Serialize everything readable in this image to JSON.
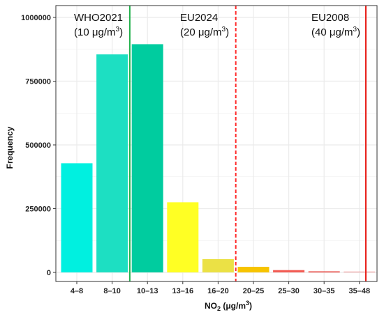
{
  "chart_data": {
    "type": "bar",
    "title": "",
    "xlabel": "NO",
    "xlabel_sub": "2",
    "xlabel_unit": " (μg/m",
    "xlabel_sup": "3",
    "xlabel_close": ")",
    "ylabel": "Frequency",
    "ylim": [
      0,
      1000000
    ],
    "yticks": [
      0,
      250000,
      500000,
      750000,
      1000000
    ],
    "ytick_labels": [
      "0",
      "250000",
      "500000",
      "750000",
      "1000000"
    ],
    "grid": true,
    "categories": [
      "4–8",
      "8–10",
      "10–13",
      "13–16",
      "16–20",
      "20–25",
      "25–30",
      "30–35",
      "35–48"
    ],
    "values": [
      428000,
      855000,
      895000,
      275000,
      52000,
      22000,
      9000,
      4000,
      1500
    ],
    "bar_colors": [
      "#00F0E0",
      "#1DDFC2",
      "#00CC9F",
      "#FFFF24",
      "#EBE145",
      "#F7C400",
      "#F25C54",
      "#E83A33",
      "#EE9C9C"
    ],
    "reference_lines": [
      {
        "name": "WHO2021",
        "value_label": "(10 μg/m",
        "sup": "3",
        "close": ")",
        "position_between": [
          1,
          2
        ],
        "color": "#22B14C",
        "style": "solid"
      },
      {
        "name": "EU2024",
        "value_label": "(20 μg/m",
        "sup": "3",
        "close": ")",
        "position_between": [
          4,
          5
        ],
        "color": "#FF2A2A",
        "style": "dashed"
      },
      {
        "name": "EU2008",
        "value_label": "(40 μg/m",
        "sup": "3",
        "close": ")",
        "position_between": [
          8,
          8.5
        ],
        "color": "#E8201A",
        "style": "solid"
      }
    ]
  },
  "colors": {
    "panel_border": "#333333",
    "grid": "#EBEBEB"
  }
}
